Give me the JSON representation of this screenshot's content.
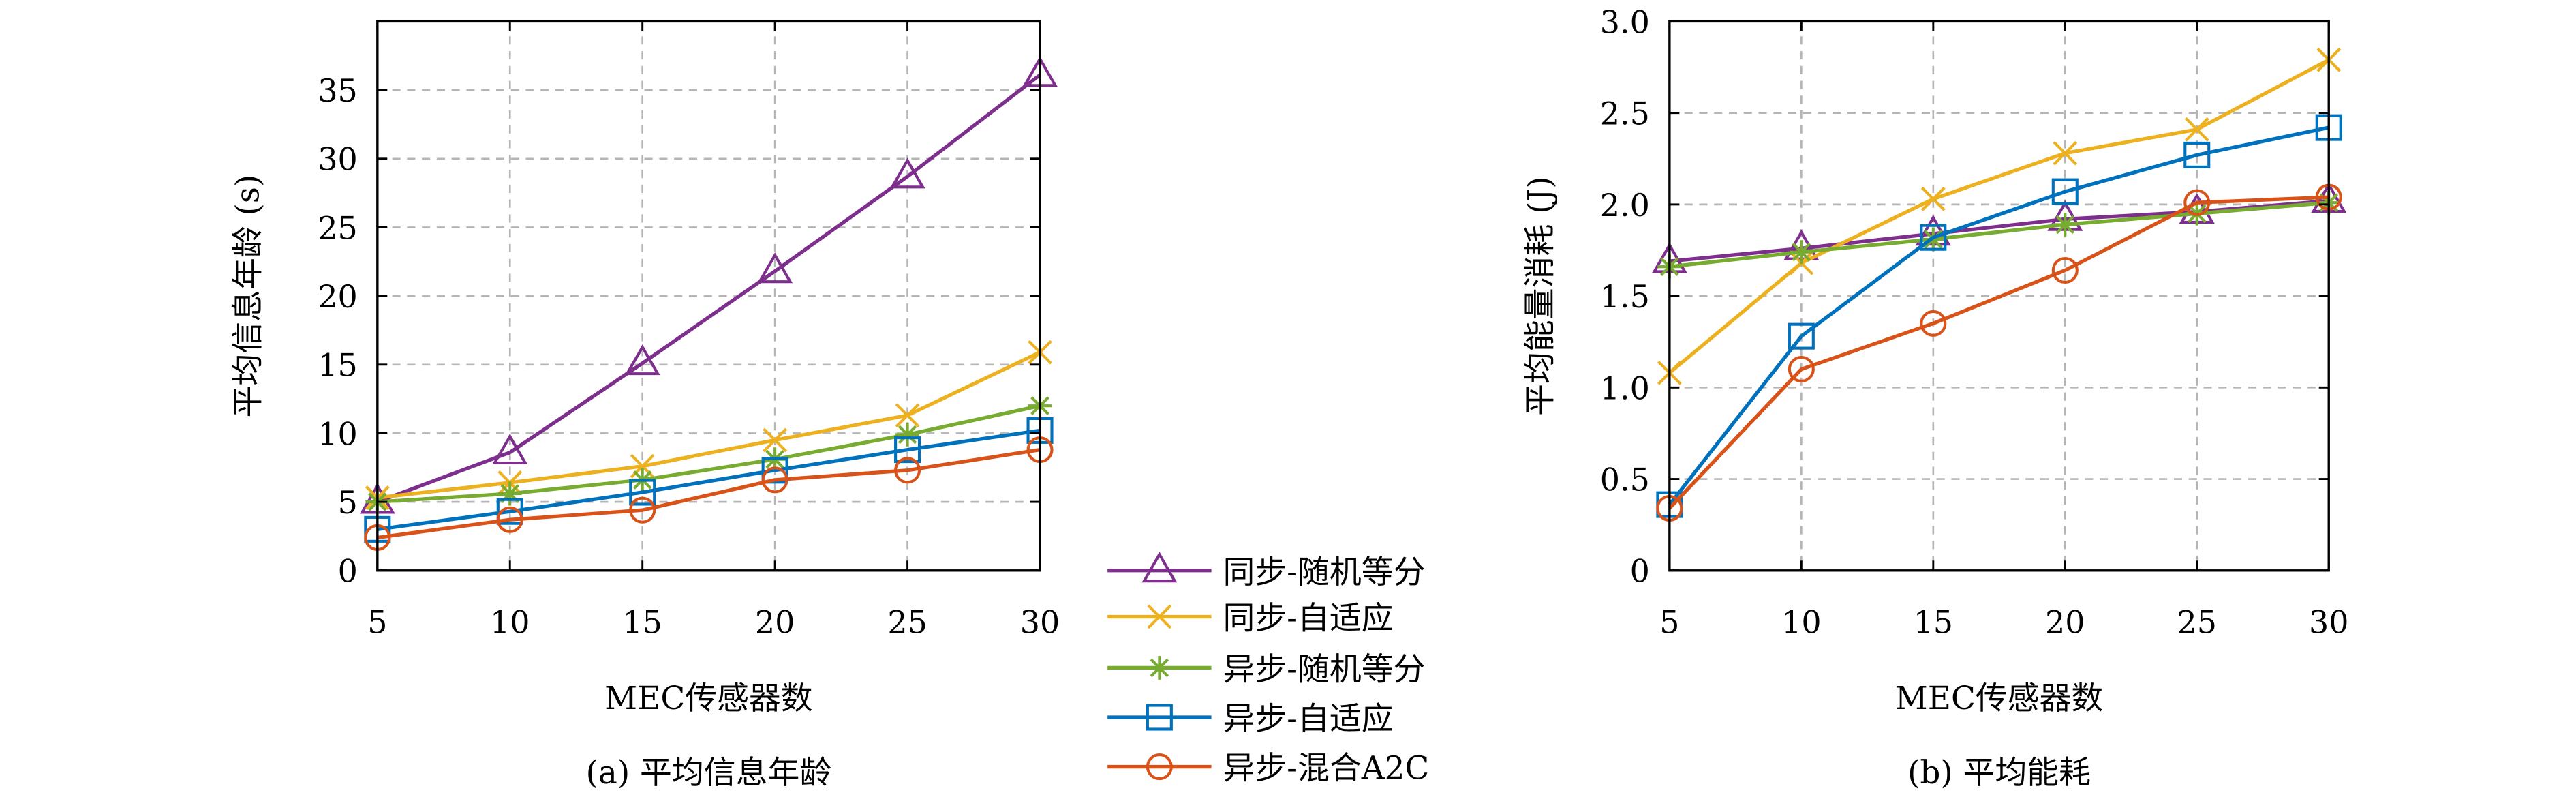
{
  "chart_data": [
    {
      "type": "line",
      "caption": "(a) 平均信息年龄",
      "xlabel": "MEC传感器数",
      "ylabel": "平均信息年龄 (s)",
      "x": [
        5,
        10,
        15,
        20,
        25,
        30
      ],
      "xlim": [
        5,
        30
      ],
      "ylim": [
        0,
        40
      ],
      "xticks": [
        5,
        10,
        15,
        20,
        25,
        30
      ],
      "yticks": [
        0,
        5,
        10,
        15,
        20,
        25,
        30,
        35
      ],
      "grid": true,
      "series": [
        {
          "name": "同步-随机等分",
          "color": "#7E2F8E",
          "marker": "triangle",
          "values": [
            5.0,
            8.6,
            15.1,
            21.8,
            28.7,
            36.1
          ]
        },
        {
          "name": "同步-自适应",
          "color": "#EDB120",
          "marker": "x",
          "values": [
            5.3,
            6.4,
            7.6,
            9.5,
            11.3,
            15.9
          ]
        },
        {
          "name": "异步-随机等分",
          "color": "#77AC30",
          "marker": "asterisk",
          "values": [
            5.0,
            5.6,
            6.6,
            8.1,
            9.9,
            12.0
          ]
        },
        {
          "name": "异步-自适应",
          "color": "#0072BD",
          "marker": "square",
          "values": [
            3.0,
            4.3,
            5.7,
            7.3,
            8.8,
            10.2
          ]
        },
        {
          "name": "异步-混合A2C",
          "color": "#D95319",
          "marker": "circle",
          "values": [
            2.4,
            3.7,
            4.4,
            6.6,
            7.3,
            8.8
          ]
        }
      ]
    },
    {
      "type": "line",
      "caption": "(b) 平均能耗",
      "xlabel": "MEC传感器数",
      "ylabel": "平均能量消耗 (J)",
      "x": [
        5,
        10,
        15,
        20,
        25,
        30
      ],
      "xlim": [
        5,
        30
      ],
      "ylim": [
        0,
        3.0
      ],
      "xticks": [
        5,
        10,
        15,
        20,
        25,
        30
      ],
      "yticks": [
        0,
        0.5,
        1.0,
        1.5,
        2.0,
        2.5,
        3.0
      ],
      "ytick_labels": [
        "0",
        "0.5",
        "1.0",
        "1.5",
        "2.0",
        "2.5",
        "3.0"
      ],
      "grid": true,
      "series": [
        {
          "name": "同步-随机等分",
          "color": "#7E2F8E",
          "marker": "triangle",
          "values": [
            1.69,
            1.76,
            1.84,
            1.92,
            1.96,
            2.02
          ]
        },
        {
          "name": "同步-自适应",
          "color": "#EDB120",
          "marker": "x",
          "values": [
            1.08,
            1.68,
            2.03,
            2.28,
            2.41,
            2.79
          ]
        },
        {
          "name": "异步-随机等分",
          "color": "#77AC30",
          "marker": "asterisk",
          "values": [
            1.66,
            1.74,
            1.81,
            1.89,
            1.95,
            2.01
          ]
        },
        {
          "name": "异步-自适应",
          "color": "#0072BD",
          "marker": "square",
          "values": [
            0.36,
            1.28,
            1.82,
            2.07,
            2.27,
            2.42
          ]
        },
        {
          "name": "异步-混合A2C",
          "color": "#D95319",
          "marker": "circle",
          "values": [
            0.34,
            1.1,
            1.35,
            1.64,
            2.01,
            2.04
          ]
        }
      ]
    }
  ],
  "legend": {
    "placement": "center-between-plots",
    "items": [
      "同步-随机等分",
      "同步-自适应",
      "异步-随机等分",
      "异步-自适应",
      "异步-混合A2C"
    ]
  }
}
